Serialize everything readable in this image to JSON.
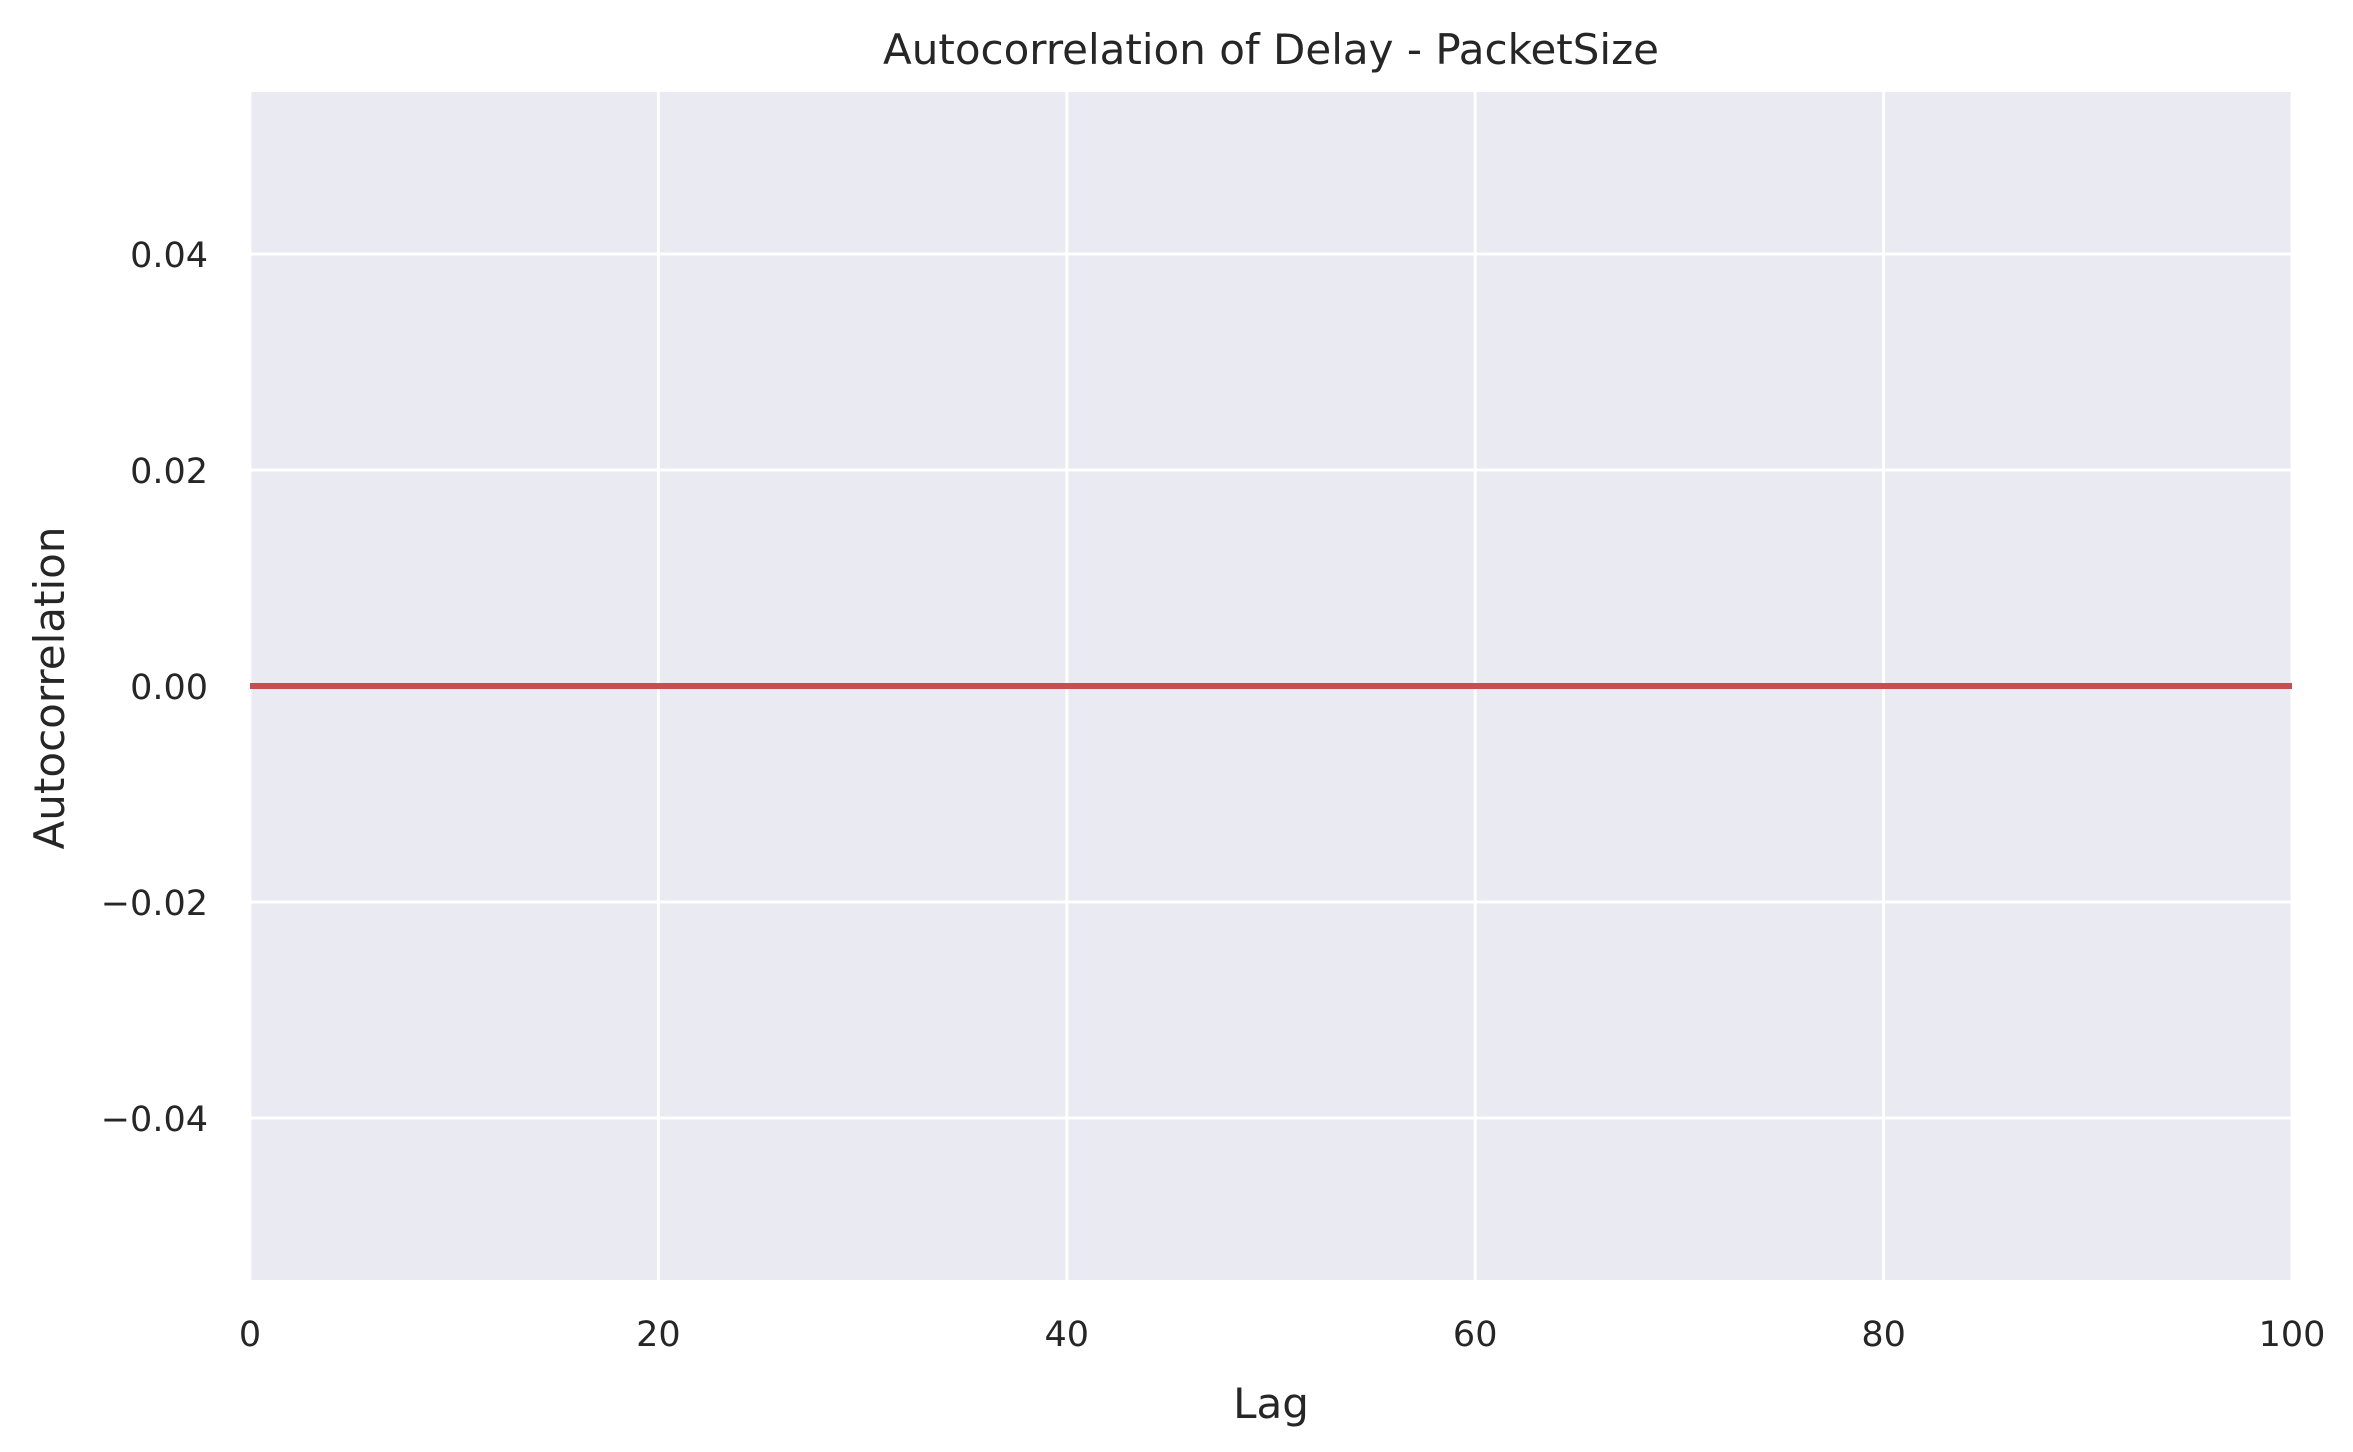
{
  "chart_data": {
    "type": "line",
    "title": "Autocorrelation of Delay - PacketSize",
    "xlabel": "Lag",
    "ylabel": "Autocorrelation",
    "xlim": [
      0,
      100
    ],
    "ylim": [
      -0.055,
      0.055
    ],
    "x_ticks": [
      0,
      20,
      40,
      60,
      80,
      100
    ],
    "x_tick_labels": [
      "0",
      "20",
      "40",
      "60",
      "80",
      "100"
    ],
    "y_ticks": [
      -0.04,
      -0.02,
      0.0,
      0.02,
      0.04
    ],
    "y_tick_labels": [
      "−0.04",
      "−0.02",
      "0.00",
      "0.02",
      "0.04"
    ],
    "grid": true,
    "series": [
      {
        "x": [
          0,
          100
        ],
        "y": [
          0,
          0
        ],
        "color": "#c44e52"
      }
    ],
    "colors": {
      "plot_background": "#eaeaf2",
      "grid": "#ffffff",
      "text": "#262626"
    }
  }
}
